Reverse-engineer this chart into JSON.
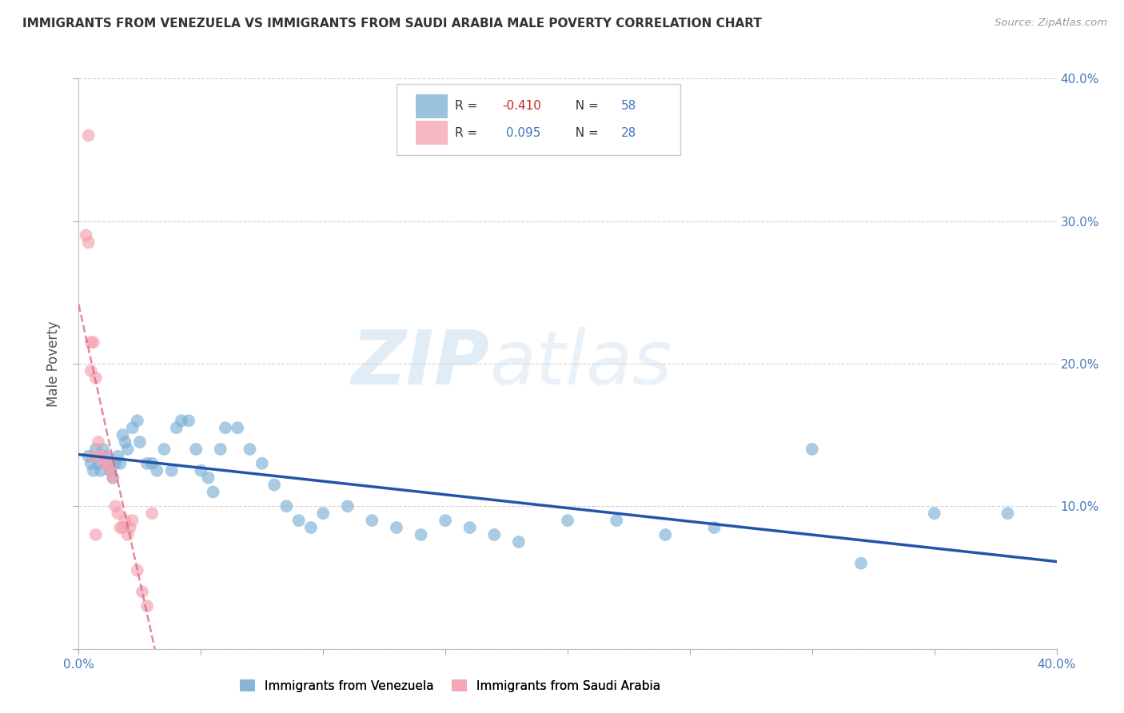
{
  "title": "IMMIGRANTS FROM VENEZUELA VS IMMIGRANTS FROM SAUDI ARABIA MALE POVERTY CORRELATION CHART",
  "source": "Source: ZipAtlas.com",
  "ylabel": "Male Poverty",
  "xlim": [
    0.0,
    0.4
  ],
  "ylim": [
    0.0,
    0.4
  ],
  "right_ytick_labels": [
    "10.0%",
    "20.0%",
    "30.0%",
    "40.0%"
  ],
  "right_yticks": [
    0.1,
    0.2,
    0.3,
    0.4
  ],
  "r_venezuela": -0.41,
  "n_venezuela": 58,
  "r_saudi": 0.095,
  "n_saudi": 28,
  "venezuela_color": "#7BAFD4",
  "saudi_color": "#F4A0B0",
  "trend_venezuela_color": "#2255AA",
  "trend_saudi_color": "#E06080",
  "grid_color": "#CCCCCC",
  "background_color": "#FFFFFF",
  "watermark_zip": "ZIP",
  "watermark_atlas": "atlas",
  "legend_label_venezuela": "Immigrants from Venezuela",
  "legend_label_saudi": "Immigrants from Saudi Arabia",
  "venezuela_x": [
    0.004,
    0.005,
    0.006,
    0.007,
    0.008,
    0.009,
    0.01,
    0.011,
    0.012,
    0.013,
    0.014,
    0.015,
    0.016,
    0.017,
    0.018,
    0.019,
    0.02,
    0.022,
    0.024,
    0.025,
    0.028,
    0.03,
    0.032,
    0.035,
    0.038,
    0.04,
    0.042,
    0.045,
    0.048,
    0.05,
    0.053,
    0.055,
    0.058,
    0.06,
    0.065,
    0.07,
    0.075,
    0.08,
    0.085,
    0.09,
    0.095,
    0.1,
    0.11,
    0.12,
    0.13,
    0.14,
    0.15,
    0.16,
    0.17,
    0.18,
    0.2,
    0.22,
    0.24,
    0.26,
    0.3,
    0.32,
    0.35,
    0.38
  ],
  "venezuela_y": [
    0.135,
    0.13,
    0.125,
    0.14,
    0.13,
    0.125,
    0.14,
    0.135,
    0.13,
    0.125,
    0.12,
    0.13,
    0.135,
    0.13,
    0.15,
    0.145,
    0.14,
    0.155,
    0.16,
    0.145,
    0.13,
    0.13,
    0.125,
    0.14,
    0.125,
    0.155,
    0.16,
    0.16,
    0.14,
    0.125,
    0.12,
    0.11,
    0.14,
    0.155,
    0.155,
    0.14,
    0.13,
    0.115,
    0.1,
    0.09,
    0.085,
    0.095,
    0.1,
    0.09,
    0.085,
    0.08,
    0.09,
    0.085,
    0.08,
    0.075,
    0.09,
    0.09,
    0.08,
    0.085,
    0.14,
    0.06,
    0.095,
    0.095
  ],
  "saudi_x": [
    0.003,
    0.004,
    0.005,
    0.006,
    0.007,
    0.008,
    0.009,
    0.01,
    0.011,
    0.012,
    0.013,
    0.014,
    0.015,
    0.016,
    0.017,
    0.018,
    0.019,
    0.02,
    0.021,
    0.022,
    0.024,
    0.026,
    0.028,
    0.03,
    0.004,
    0.005,
    0.006,
    0.007
  ],
  "saudi_y": [
    0.29,
    0.36,
    0.195,
    0.215,
    0.19,
    0.145,
    0.135,
    0.135,
    0.13,
    0.13,
    0.125,
    0.12,
    0.1,
    0.095,
    0.085,
    0.085,
    0.09,
    0.08,
    0.085,
    0.09,
    0.055,
    0.04,
    0.03,
    0.095,
    0.285,
    0.215,
    0.135,
    0.08
  ]
}
